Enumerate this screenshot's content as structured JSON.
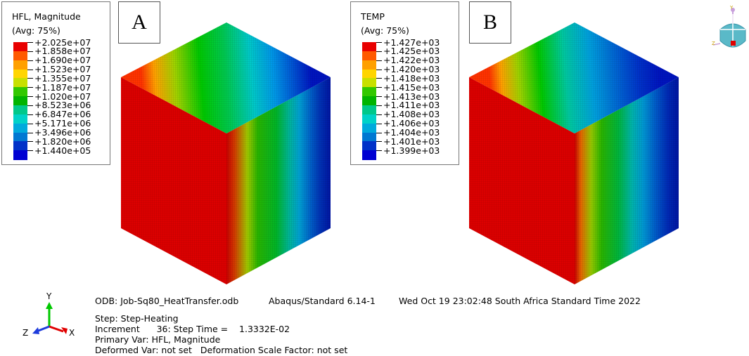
{
  "panels": [
    {
      "label": "A",
      "legend_title": "HFL, Magnitude",
      "legend_subtitle": "(Avg: 75%)",
      "legend_values": [
        "+2.025e+07",
        "+1.858e+07",
        "+1.690e+07",
        "+1.523e+07",
        "+1.355e+07",
        "+1.187e+07",
        "+1.020e+07",
        "+8.523e+06",
        "+6.847e+06",
        "+5.171e+06",
        "+3.496e+06",
        "+1.820e+06",
        "+1.440e+05"
      ]
    },
    {
      "label": "B",
      "legend_title": "TEMP",
      "legend_subtitle": "(Avg: 75%)",
      "legend_values": [
        "+1.427e+03",
        "+1.425e+03",
        "+1.422e+03",
        "+1.420e+03",
        "+1.418e+03",
        "+1.415e+03",
        "+1.413e+03",
        "+1.411e+03",
        "+1.408e+03",
        "+1.406e+03",
        "+1.404e+03",
        "+1.401e+03",
        "+1.399e+03"
      ]
    }
  ],
  "legend_colors": [
    "#e80000",
    "#ff5a00",
    "#ffa000",
    "#ffd500",
    "#c8e000",
    "#32c800",
    "#00b400",
    "#00c88a",
    "#00d2c8",
    "#00aadc",
    "#0078d2",
    "#0032c8",
    "#0000d2"
  ],
  "info": {
    "odb": "ODB: Job-Sq80_HeatTransfer.odb",
    "solver": "Abaqus/Standard 6.14-1",
    "datetime": "Wed Oct 19 23:02:48 South Africa Standard Time 2022",
    "step": "Step: Step-Heating",
    "increment": "Increment      36: Step Time =    1.3332E-02",
    "primary_var": "Primary Var: HFL, Magnitude",
    "deformed_var": "Deformed Var: not set   Deformation Scale Factor: not set"
  },
  "triad": {
    "x": "X",
    "y": "Y",
    "z": "Z"
  },
  "viewcube": {
    "y": "Y",
    "z": "Z"
  }
}
